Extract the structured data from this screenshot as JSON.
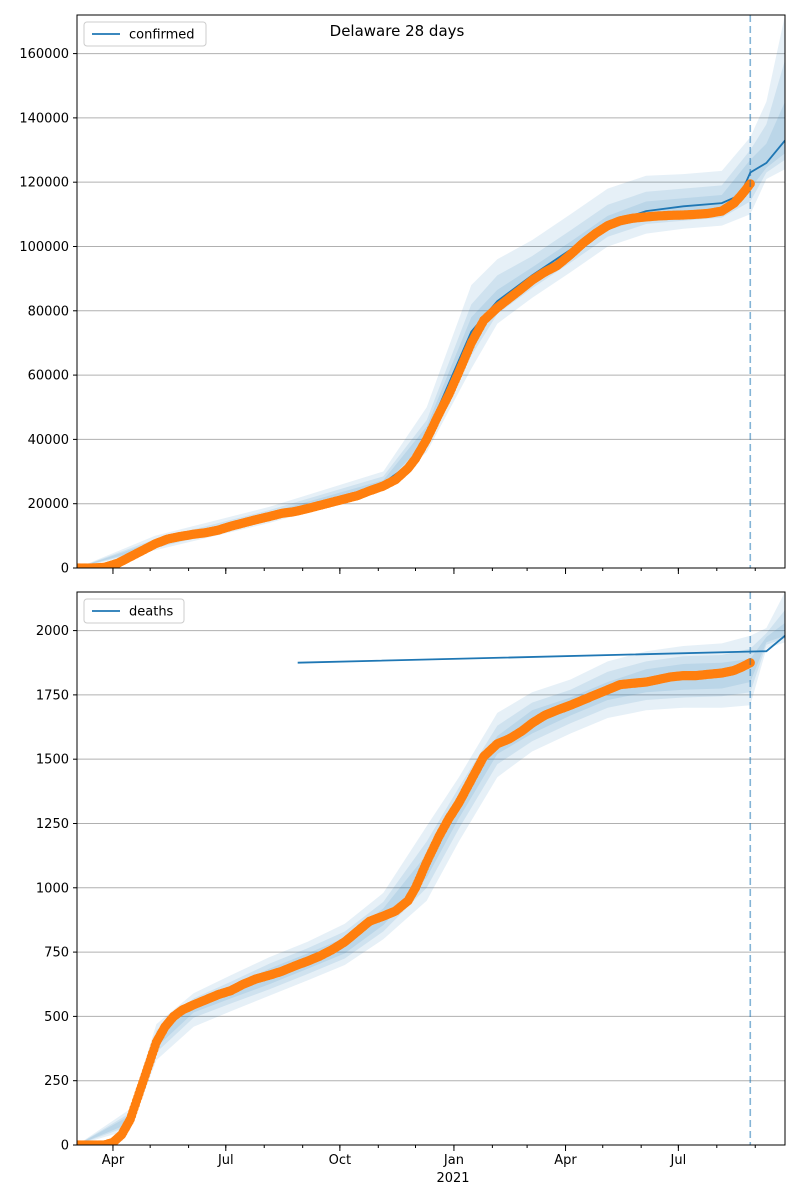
{
  "figure": {
    "title": "Delaware 28 days"
  },
  "colors": {
    "model_line": "#1f77b4",
    "observed_points": "#ff7f0e",
    "band": "#1f77b4",
    "grid": "#b0b0b0",
    "forecast_line": "#1f77b4"
  },
  "x_axis": {
    "ticks": [
      {
        "date": "2020-04-01",
        "label": "Apr"
      },
      {
        "date": "2020-07-01",
        "label": "Jul"
      },
      {
        "date": "2020-10-01",
        "label": "Oct"
      },
      {
        "date": "2021-01-01",
        "label": "Jan"
      },
      {
        "date": "2021-04-01",
        "label": "Apr"
      },
      {
        "date": "2021-07-01",
        "label": "Jul"
      }
    ],
    "year_label": "2021",
    "range": [
      "2020-03-03",
      "2021-09-25"
    ]
  },
  "chart_data": [
    {
      "type": "line",
      "legend": "confirmed",
      "legend_position": "top-left",
      "grid": "horizontal",
      "ylim": [
        0,
        172000
      ],
      "yticks": [
        0,
        20000,
        40000,
        60000,
        80000,
        100000,
        120000,
        140000,
        160000
      ],
      "ytick_labels": [
        "0",
        "20000",
        "40000",
        "60000",
        "80000",
        "100000",
        "120000",
        "140000",
        "160000"
      ],
      "forecast_start": "2021-08-28",
      "observed": {
        "dates": [
          "2020-03-03",
          "2020-03-15",
          "2020-03-25",
          "2020-04-05",
          "2020-04-15",
          "2020-04-25",
          "2020-05-05",
          "2020-05-15",
          "2020-05-25",
          "2020-06-05",
          "2020-06-15",
          "2020-06-25",
          "2020-07-05",
          "2020-07-15",
          "2020-07-25",
          "2020-08-05",
          "2020-08-15",
          "2020-08-25",
          "2020-09-05",
          "2020-09-15",
          "2020-09-25",
          "2020-10-05",
          "2020-10-15",
          "2020-10-25",
          "2020-11-05",
          "2020-11-15",
          "2020-11-25",
          "2020-12-01",
          "2020-12-10",
          "2020-12-20",
          "2020-12-28",
          "2021-01-05",
          "2021-01-15",
          "2021-01-25",
          "2021-02-05",
          "2021-02-15",
          "2021-02-25",
          "2021-03-05",
          "2021-03-15",
          "2021-03-25",
          "2021-04-05",
          "2021-04-15",
          "2021-04-25",
          "2021-05-05",
          "2021-05-15",
          "2021-05-25",
          "2021-06-05",
          "2021-06-15",
          "2021-06-25",
          "2021-07-05",
          "2021-07-15",
          "2021-07-25",
          "2021-08-05",
          "2021-08-15",
          "2021-08-22",
          "2021-08-28"
        ],
        "values": [
          0,
          0,
          200,
          1500,
          3500,
          5500,
          7500,
          9000,
          9800,
          10500,
          11000,
          11800,
          13000,
          14000,
          15000,
          16000,
          17000,
          17500,
          18500,
          19500,
          20500,
          21500,
          22500,
          24000,
          25500,
          27500,
          31000,
          34000,
          40000,
          48000,
          54000,
          61000,
          70000,
          77000,
          81000,
          84000,
          87000,
          89500,
          92000,
          94000,
          97500,
          101000,
          104000,
          106500,
          108000,
          108800,
          109200,
          109500,
          109700,
          109800,
          110000,
          110300,
          111000,
          113500,
          116500,
          119500
        ]
      },
      "model": {
        "dates": [
          "2020-03-03",
          "2020-04-05",
          "2020-05-05",
          "2020-06-05",
          "2020-07-05",
          "2020-08-05",
          "2020-09-05",
          "2020-10-05",
          "2020-11-05",
          "2020-11-25",
          "2020-12-10",
          "2020-12-28",
          "2021-01-15",
          "2021-02-05",
          "2021-03-05",
          "2021-04-05",
          "2021-05-05",
          "2021-06-05",
          "2021-07-05",
          "2021-08-05",
          "2021-08-20",
          "2021-08-28",
          "2021-09-10",
          "2021-09-25"
        ],
        "values": [
          0,
          1500,
          7500,
          10800,
          13200,
          16400,
          19200,
          22200,
          26300,
          32000,
          41500,
          57500,
          73500,
          83000,
          91000,
          99000,
          107000,
          111000,
          112500,
          113500,
          116000,
          123000,
          126000,
          133000
        ]
      },
      "bands": [
        {
          "dates": [
            "2020-03-03",
            "2020-05-05",
            "2020-08-05",
            "2020-11-05",
            "2020-12-10",
            "2021-01-15",
            "2021-02-05",
            "2021-03-05",
            "2021-04-05",
            "2021-05-05",
            "2021-06-05",
            "2021-07-05",
            "2021-08-05",
            "2021-08-28",
            "2021-09-10",
            "2021-09-25"
          ],
          "lower": [
            0,
            5500,
            14000,
            24000,
            36000,
            62000,
            76000,
            84000,
            92000,
            100000,
            104000,
            105500,
            106500,
            110000,
            121000,
            124000
          ],
          "upper": [
            0,
            10000,
            19000,
            30000,
            50000,
            88000,
            96000,
            102000,
            110000,
            118000,
            122000,
            122500,
            123500,
            134000,
            145000,
            172000
          ]
        },
        {
          "dates": [
            "2020-03-03",
            "2020-05-05",
            "2020-08-05",
            "2020-11-05",
            "2020-12-10",
            "2021-01-15",
            "2021-02-05",
            "2021-03-05",
            "2021-04-05",
            "2021-05-05",
            "2021-06-05",
            "2021-07-05",
            "2021-08-05",
            "2021-08-28",
            "2021-09-10",
            "2021-09-25"
          ],
          "lower": [
            0,
            6200,
            15000,
            25000,
            38000,
            66000,
            79000,
            87000,
            95000,
            103000,
            107000,
            108000,
            109000,
            114000,
            123000,
            127000
          ],
          "upper": [
            0,
            9000,
            18000,
            28500,
            46000,
            82000,
            91000,
            97000,
            105000,
            113000,
            117000,
            118000,
            119000,
            130000,
            138000,
            158000
          ]
        },
        {
          "dates": [
            "2020-03-03",
            "2020-05-05",
            "2020-08-05",
            "2020-11-05",
            "2020-12-10",
            "2021-01-15",
            "2021-02-05",
            "2021-03-05",
            "2021-04-05",
            "2021-05-05",
            "2021-06-05",
            "2021-07-05",
            "2021-08-05",
            "2021-08-28",
            "2021-09-10",
            "2021-09-25"
          ],
          "lower": [
            0,
            6800,
            15700,
            25700,
            39500,
            69500,
            81000,
            89000,
            97000,
            105000,
            109000,
            110500,
            111000,
            118000,
            124500,
            129000
          ],
          "upper": [
            0,
            8300,
            17200,
            27300,
            44000,
            78000,
            86500,
            93500,
            101500,
            109500,
            114000,
            115000,
            116000,
            127000,
            132000,
            145000
          ]
        }
      ]
    },
    {
      "type": "line",
      "legend": "deaths",
      "legend_position": "top-left",
      "grid": "horizontal",
      "ylim": [
        0,
        2150
      ],
      "yticks": [
        0,
        250,
        500,
        750,
        1000,
        1250,
        1500,
        1750,
        2000
      ],
      "ytick_labels": [
        "0",
        "250",
        "500",
        "750",
        "1000",
        "1250",
        "1500",
        "1750",
        "2000"
      ],
      "forecast_start": "2021-08-28",
      "observed": {
        "dates": [
          "2020-03-03",
          "2020-03-15",
          "2020-03-25",
          "2020-04-01",
          "2020-04-08",
          "2020-04-15",
          "2020-04-22",
          "2020-04-29",
          "2020-05-06",
          "2020-05-13",
          "2020-05-20",
          "2020-05-27",
          "2020-06-05",
          "2020-06-15",
          "2020-06-25",
          "2020-07-05",
          "2020-07-15",
          "2020-07-25",
          "2020-08-05",
          "2020-08-15",
          "2020-08-25",
          "2020-09-05",
          "2020-09-15",
          "2020-09-25",
          "2020-10-05",
          "2020-10-15",
          "2020-10-25",
          "2020-11-05",
          "2020-11-15",
          "2020-11-25",
          "2020-12-01",
          "2020-12-10",
          "2020-12-20",
          "2020-12-28",
          "2021-01-05",
          "2021-01-15",
          "2021-01-25",
          "2021-02-05",
          "2021-02-15",
          "2021-02-25",
          "2021-03-05",
          "2021-03-15",
          "2021-03-25",
          "2021-04-05",
          "2021-04-15",
          "2021-04-25",
          "2021-05-05",
          "2021-05-15",
          "2021-05-25",
          "2021-06-05",
          "2021-06-15",
          "2021-06-25",
          "2021-07-05",
          "2021-07-15",
          "2021-07-25",
          "2021-08-05",
          "2021-08-15",
          "2021-08-22",
          "2021-08-28"
        ],
        "values": [
          0,
          0,
          0,
          10,
          40,
          100,
          200,
          300,
          400,
          460,
          500,
          525,
          545,
          565,
          585,
          600,
          625,
          645,
          660,
          675,
          695,
          715,
          735,
          760,
          790,
          830,
          870,
          890,
          910,
          950,
          1000,
          1100,
          1200,
          1270,
          1330,
          1420,
          1510,
          1560,
          1580,
          1610,
          1640,
          1670,
          1690,
          1710,
          1730,
          1750,
          1770,
          1790,
          1795,
          1800,
          1810,
          1820,
          1825,
          1825,
          1830,
          1835,
          1845,
          1860,
          1875
        ]
      },
      "model": {
        "dates": [
          "2020-08-28",
          "2021-09-10",
          "2021-09-25"
        ],
        "values": [
          1875,
          1920,
          1980
        ]
      },
      "bands": [
        {
          "dates": [
            "2020-03-03",
            "2020-04-15",
            "2020-05-06",
            "2020-06-05",
            "2020-07-05",
            "2020-08-05",
            "2020-09-05",
            "2020-10-05",
            "2020-11-05",
            "2020-12-10",
            "2021-01-05",
            "2021-02-05",
            "2021-03-05",
            "2021-04-05",
            "2021-05-05",
            "2021-06-05",
            "2021-07-05",
            "2021-08-05",
            "2021-08-28",
            "2021-09-10",
            "2021-09-25"
          ],
          "lower": [
            0,
            60,
            330,
            460,
            520,
            580,
            640,
            700,
            800,
            950,
            1180,
            1430,
            1530,
            1600,
            1660,
            1690,
            1700,
            1700,
            1710,
            1930,
            1955
          ],
          "upper": [
            0,
            140,
            470,
            590,
            660,
            730,
            790,
            860,
            980,
            1240,
            1430,
            1680,
            1760,
            1810,
            1880,
            1920,
            1940,
            1950,
            1980,
            2010,
            2150
          ]
        },
        {
          "dates": [
            "2020-03-03",
            "2020-04-15",
            "2020-05-06",
            "2020-06-05",
            "2020-07-05",
            "2020-08-05",
            "2020-09-05",
            "2020-10-05",
            "2020-11-05",
            "2020-12-10",
            "2021-01-05",
            "2021-02-05",
            "2021-03-05",
            "2021-04-05",
            "2021-05-05",
            "2021-06-05",
            "2021-07-05",
            "2021-08-05",
            "2021-08-28",
            "2021-09-10",
            "2021-09-25"
          ],
          "lower": [
            0,
            75,
            360,
            495,
            550,
            605,
            665,
            725,
            830,
            1000,
            1230,
            1480,
            1570,
            1640,
            1700,
            1730,
            1740,
            1745,
            1760,
            1945,
            1970
          ],
          "upper": [
            0,
            125,
            445,
            570,
            635,
            705,
            765,
            830,
            945,
            1180,
            1390,
            1630,
            1720,
            1770,
            1840,
            1880,
            1900,
            1905,
            1930,
            1990,
            2080
          ]
        },
        {
          "dates": [
            "2020-03-03",
            "2020-04-15",
            "2020-05-06",
            "2020-06-05",
            "2020-07-05",
            "2020-08-05",
            "2020-09-05",
            "2020-10-05",
            "2020-11-05",
            "2020-12-10",
            "2021-01-05",
            "2021-02-05",
            "2021-03-05",
            "2021-04-05",
            "2021-05-05",
            "2021-06-05",
            "2021-07-05",
            "2021-08-05",
            "2021-08-28",
            "2021-09-10",
            "2021-09-25"
          ],
          "lower": [
            0,
            85,
            380,
            515,
            570,
            625,
            685,
            745,
            855,
            1040,
            1270,
            1520,
            1600,
            1670,
            1730,
            1760,
            1770,
            1775,
            1800,
            1955,
            1980
          ],
          "upper": [
            0,
            115,
            425,
            550,
            615,
            685,
            745,
            805,
            920,
            1130,
            1350,
            1590,
            1690,
            1740,
            1800,
            1850,
            1870,
            1875,
            1890,
            1975,
            2030
          ]
        }
      ]
    }
  ]
}
